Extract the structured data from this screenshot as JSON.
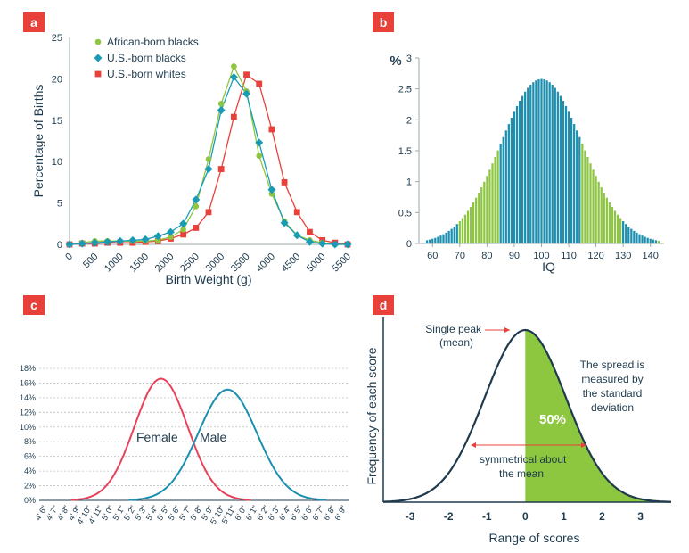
{
  "colors": {
    "green": "#8dc63f",
    "teal": "#1a9bb5",
    "red": "#e8413a",
    "pink": "#e8425a",
    "navy": "#1e3a4c",
    "fill_green": "#8dc63f",
    "blue_bar": "#1a8fb0"
  },
  "panels": {
    "a": {
      "badge": "a"
    },
    "b": {
      "badge": "b"
    },
    "c": {
      "badge": "c"
    },
    "d": {
      "badge": "d"
    }
  },
  "chart_data": [
    {
      "type": "line",
      "panel": "a",
      "title": "",
      "xlabel": "Birth Weight (g)",
      "ylabel": "Percentage of Births",
      "xlim": [
        0,
        5500
      ],
      "ylim": [
        0,
        25
      ],
      "x_ticks": [
        "0",
        "500",
        "1000",
        "1500",
        "2000",
        "2500",
        "3000",
        "3500",
        "4000",
        "4500",
        "5000",
        "5500"
      ],
      "y_ticks": [
        "0",
        "5",
        "10",
        "15",
        "20",
        "25"
      ],
      "legend": [
        "African-born blacks",
        "U.S.-born blacks",
        "U.S.-born whites"
      ],
      "series": [
        {
          "name": "African-born blacks",
          "marker": "circle",
          "color": "#8dc63f",
          "x": [
            0,
            250,
            500,
            750,
            1000,
            1250,
            1500,
            1750,
            2000,
            2250,
            2500,
            2750,
            3000,
            3250,
            3500,
            3750,
            4000,
            4250,
            4500,
            4750,
            5000,
            5250,
            5500
          ],
          "y": [
            0,
            0.2,
            0.4,
            0.4,
            0.4,
            0.4,
            0.4,
            0.5,
            0.9,
            1.8,
            4.6,
            10.3,
            17.0,
            21.5,
            18.5,
            10.7,
            6.1,
            2.8,
            1.1,
            0.5,
            0.2,
            0,
            0
          ]
        },
        {
          "name": "U.S.-born blacks",
          "marker": "diamond",
          "color": "#1a9bb5",
          "x": [
            0,
            250,
            500,
            750,
            1000,
            1250,
            1500,
            1750,
            2000,
            2250,
            2500,
            2750,
            3000,
            3250,
            3500,
            3750,
            4000,
            4250,
            4500,
            4750,
            5000,
            5250,
            5500
          ],
          "y": [
            0,
            0.1,
            0.2,
            0.3,
            0.4,
            0.5,
            0.6,
            1.0,
            1.5,
            2.5,
            5.4,
            9.1,
            16.2,
            20.2,
            18.2,
            12.3,
            6.6,
            2.6,
            1.1,
            0.3,
            0.1,
            0,
            0
          ]
        },
        {
          "name": "U.S.-born whites",
          "marker": "square",
          "color": "#e8413a",
          "x": [
            0,
            250,
            500,
            750,
            1000,
            1250,
            1500,
            1750,
            2000,
            2250,
            2500,
            2750,
            3000,
            3250,
            3500,
            3750,
            4000,
            4250,
            4500,
            4750,
            5000,
            5250,
            5500
          ],
          "y": [
            0,
            0.1,
            0.1,
            0.2,
            0.2,
            0.2,
            0.3,
            0.4,
            0.7,
            1.2,
            2.0,
            3.9,
            9.1,
            15.4,
            20.5,
            19.4,
            13.9,
            7.5,
            3.9,
            1.5,
            0.5,
            0.2,
            0
          ]
        }
      ]
    },
    {
      "type": "bar",
      "panel": "b",
      "title": "",
      "xlabel": "IQ",
      "ylabel": "%",
      "xlim": [
        55,
        145
      ],
      "ylim": [
        0,
        3
      ],
      "x_ticks": [
        "60",
        "70",
        "80",
        "90",
        "100",
        "110",
        "120",
        "130",
        "140"
      ],
      "y_ticks": [
        "0",
        "0.5",
        "1",
        "1.5",
        "2",
        "2.5",
        "3"
      ],
      "distribution": {
        "mean": 100,
        "sd": 15,
        "bin_width": 1,
        "range": [
          58,
          143
        ]
      },
      "blue_bands": [
        [
          58,
          70
        ],
        [
          85,
          115
        ],
        [
          130,
          143
        ]
      ],
      "peak_percent": 2.66
    },
    {
      "type": "line",
      "panel": "c",
      "title": "",
      "xlabel": "",
      "ylabel": "",
      "ylim": [
        0,
        18
      ],
      "y_ticks": [
        "0%",
        "2%",
        "4%",
        "6%",
        "8%",
        "10%",
        "12%",
        "14%",
        "16%",
        "18%"
      ],
      "x_ticks": [
        "4' 6\"",
        "4' 7\"",
        "4' 8\"",
        "4' 9\"",
        "4' 10\"",
        "4' 11\"",
        "5' 0\"",
        "5' 1\"",
        "5' 2\"",
        "5' 3\"",
        "5' 4\"",
        "5' 5\"",
        "5' 6\"",
        "5' 7\"",
        "5' 8\"",
        "5' 9\"",
        "5' 10\"",
        "5' 11\"",
        "6' 0\"",
        "6' 1\"",
        "6' 2\"",
        "6' 3\"",
        "6' 4\"",
        "6' 5\"",
        "6' 6\"",
        "6' 7\"",
        "6' 8\"",
        "6' 9\""
      ],
      "series": [
        {
          "name": "Female",
          "color": "#e8425a",
          "mean_index": 10.5,
          "sd_index": 2.4,
          "peak": 16.6
        },
        {
          "name": "Male",
          "color": "#1a8fb0",
          "mean_index": 16.5,
          "sd_index": 2.65,
          "peak": 15.1
        }
      ]
    },
    {
      "type": "area",
      "panel": "d",
      "title": "",
      "xlabel": "Range of scores",
      "ylabel": "Frequency of each score",
      "xlim": [
        -3.7,
        3.8
      ],
      "x_ticks": [
        "-3",
        "-2",
        "-1",
        "0",
        "1",
        "2",
        "3"
      ],
      "shaded_range": [
        0,
        3.8
      ],
      "shaded_label": "50%",
      "annotations": {
        "peak": [
          "Single peak",
          "(mean)"
        ],
        "spread": [
          "The spread is",
          "measured by",
          "the standard",
          "deviation"
        ],
        "symmetry": [
          "symmetrical about",
          "the mean"
        ]
      }
    }
  ]
}
